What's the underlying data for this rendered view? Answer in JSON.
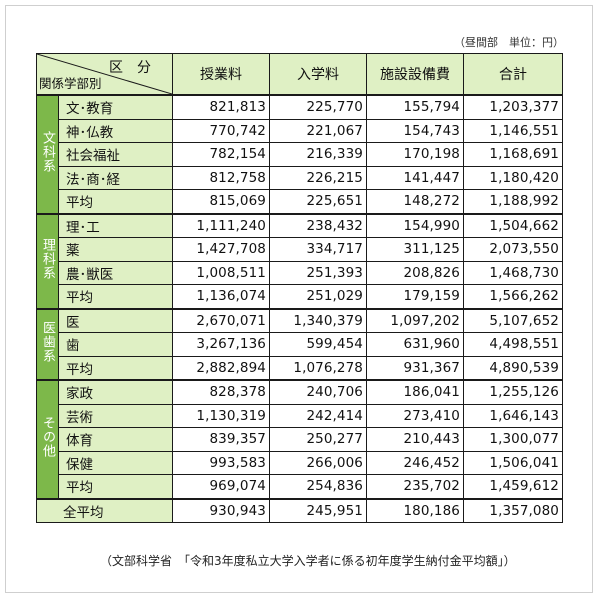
{
  "unit_note": "（昼間部　単位：円）",
  "header": {
    "corner_top": "区分",
    "corner_bottom": "関係学部別",
    "columns": [
      "授業料",
      "入学料",
      "施設設備費",
      "合計"
    ]
  },
  "groups": [
    {
      "name": "文科系",
      "rows": [
        {
          "label": "文･教育",
          "values": [
            "821,813",
            "225,770",
            "155,794",
            "1,203,377"
          ]
        },
        {
          "label": "神･仏教",
          "values": [
            "770,742",
            "221,067",
            "154,743",
            "1,146,551"
          ]
        },
        {
          "label": "社会福祉",
          "values": [
            "782,154",
            "216,339",
            "170,198",
            "1,168,691"
          ]
        },
        {
          "label": "法･商･経",
          "values": [
            "812,758",
            "226,215",
            "141,447",
            "1,180,420"
          ]
        },
        {
          "label": "平均",
          "values": [
            "815,069",
            "225,651",
            "148,272",
            "1,188,992"
          ]
        }
      ]
    },
    {
      "name": "理科系",
      "rows": [
        {
          "label": "理･工",
          "values": [
            "1,111,240",
            "238,432",
            "154,990",
            "1,504,662"
          ]
        },
        {
          "label": "薬",
          "values": [
            "1,427,708",
            "334,717",
            "311,125",
            "2,073,550"
          ]
        },
        {
          "label": "農･獣医",
          "values": [
            "1,008,511",
            "251,393",
            "208,826",
            "1,468,730"
          ]
        },
        {
          "label": "平均",
          "values": [
            "1,136,074",
            "251,029",
            "179,159",
            "1,566,262"
          ]
        }
      ]
    },
    {
      "name": "医歯系",
      "rows": [
        {
          "label": "医",
          "values": [
            "2,670,071",
            "1,340,379",
            "1,097,202",
            "5,107,652"
          ]
        },
        {
          "label": "歯",
          "values": [
            "3,267,136",
            "599,454",
            "631,960",
            "4,498,551"
          ]
        },
        {
          "label": "平均",
          "values": [
            "2,882,894",
            "1,076,278",
            "931,367",
            "4,890,539"
          ]
        }
      ]
    },
    {
      "name": "その他",
      "rows": [
        {
          "label": "家政",
          "values": [
            "828,378",
            "240,706",
            "186,041",
            "1,255,126"
          ]
        },
        {
          "label": "芸術",
          "values": [
            "1,130,319",
            "242,414",
            "273,410",
            "1,646,143"
          ]
        },
        {
          "label": "体育",
          "values": [
            "839,357",
            "250,277",
            "210,443",
            "1,300,077"
          ]
        },
        {
          "label": "保健",
          "values": [
            "993,583",
            "266,006",
            "246,452",
            "1,506,041"
          ]
        },
        {
          "label": "平均",
          "values": [
            "969,074",
            "254,836",
            "235,702",
            "1,459,612"
          ]
        }
      ]
    }
  ],
  "total": {
    "label": "全平均",
    "values": [
      "930,943",
      "245,951",
      "180,186",
      "1,357,080"
    ]
  },
  "source": "（文部科学省　「令和3年度私立大学入学者に係る初年度学生納付金平均額」）",
  "colors": {
    "group_band": "#7db84a",
    "label_cell": "#dff0c4"
  }
}
